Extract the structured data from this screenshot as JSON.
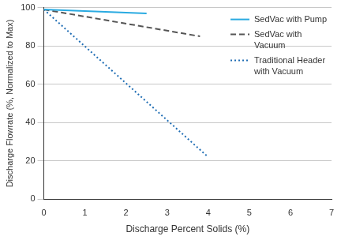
{
  "chart_data": {
    "type": "line",
    "x_label": "Discharge Percent Solids (%)",
    "y_label": "Discharge Flowrate (%, Normalized to Max)",
    "xlim": [
      0,
      7
    ],
    "xticks": [
      0,
      1,
      2,
      3,
      4,
      5,
      6,
      7
    ],
    "ylim": [
      0,
      100
    ],
    "yticks": [
      0,
      20,
      40,
      60,
      80,
      100
    ],
    "grid": "y",
    "legend": "upper right",
    "series": [
      {
        "name": "SedVac with Pump",
        "color": "#29aae1",
        "line_style": "solid",
        "marker": "none",
        "x": [
          0,
          2.5
        ],
        "values": [
          99,
          97
        ]
      },
      {
        "name": "SedVac with Vacuum",
        "color": "#555555",
        "line_style": "dashed",
        "marker": "none",
        "x": [
          0,
          3.8
        ],
        "values": [
          99,
          85
        ]
      },
      {
        "name": "Traditional Header with Vacuum",
        "color": "#1f6db4",
        "line_style": "dotted",
        "marker": "none",
        "x": [
          0,
          4
        ],
        "values": [
          99,
          22
        ]
      }
    ]
  }
}
